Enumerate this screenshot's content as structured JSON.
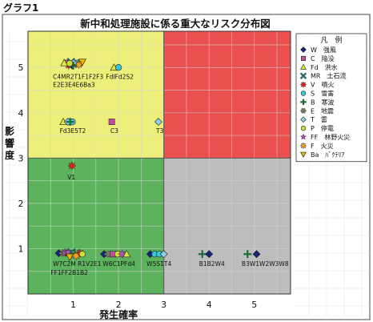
{
  "page_label": "グラフ1",
  "chart_data": {
    "type": "scatter",
    "title": "新中和処理施設に係る重大なリスク分布図",
    "xlabel": "発生確率",
    "ylabel": "影響度",
    "xlim": [
      0,
      5.8
    ],
    "ylim": [
      0,
      5.8
    ],
    "x_ticks": [
      "1",
      "2",
      "3",
      "4",
      "5"
    ],
    "y_ticks": [
      "1",
      "2",
      "3",
      "4",
      "5"
    ],
    "grid": true,
    "legend_position": "right",
    "zones": [
      {
        "x": [
          0,
          3
        ],
        "y": [
          3,
          5.8
        ],
        "color": "#ecf07a"
      },
      {
        "x": [
          3,
          5.8
        ],
        "y": [
          3,
          5.8
        ],
        "color": "#e9504f"
      },
      {
        "x": [
          0,
          3
        ],
        "y": [
          0,
          3
        ],
        "color": "#5db35d"
      },
      {
        "x": [
          3,
          5.8
        ],
        "y": [
          0,
          3
        ],
        "color": "#bdbdbd"
      }
    ],
    "legend_title": "凡　例",
    "series": [
      {
        "name": "W　強風",
        "color": "#1a237e",
        "marker": "diamond"
      },
      {
        "name": "C　陥没",
        "color": "#c04d9e",
        "marker": "square"
      },
      {
        "name": "Fd　洪水",
        "color": "#dde83e",
        "marker": "triangle"
      },
      {
        "name": "MR　土石流",
        "color": "#2b6b6b",
        "marker": "cross"
      },
      {
        "name": "V　噴火",
        "color": "#e52020",
        "marker": "burst"
      },
      {
        "name": "S　雪害",
        "color": "#3ec4d4",
        "marker": "circle"
      },
      {
        "name": "B　寒波",
        "color": "#1f6b3a",
        "marker": "plus"
      },
      {
        "name": "E　地震",
        "color": "#6f7d5c",
        "marker": "gear"
      },
      {
        "name": "T　雷",
        "color": "#8fd0e8",
        "marker": "diamond"
      },
      {
        "name": "P　停電",
        "color": "#c8e03a",
        "marker": "circle"
      },
      {
        "name": "FF　林野火災",
        "color": "#b050b0",
        "marker": "star"
      },
      {
        "name": "F　火災",
        "color": "#f2a020",
        "marker": "burst"
      },
      {
        "name": "Ba　ﾊﾞｸﾃﾘｱ",
        "color": "#e8b800",
        "marker": "triangle-down"
      }
    ],
    "points": [
      {
        "x": 0.85,
        "y": 5.1,
        "marker": "square",
        "color": "#c04d9e"
      },
      {
        "x": 0.95,
        "y": 5.12,
        "marker": "cross",
        "color": "#2b6b6b"
      },
      {
        "x": 1.05,
        "y": 5.08,
        "marker": "burst",
        "color": "#b050b0"
      },
      {
        "x": 1.1,
        "y": 5.1,
        "marker": "circle",
        "color": "#3ec4d4"
      },
      {
        "x": 0.9,
        "y": 5.05,
        "marker": "burst",
        "color": "#e52020"
      },
      {
        "x": 1.0,
        "y": 5.1,
        "marker": "diamond",
        "color": "#8fd0e8"
      },
      {
        "x": 1.15,
        "y": 5.1,
        "marker": "gear",
        "color": "#6f7d5c"
      },
      {
        "x": 0.8,
        "y": 5.1,
        "marker": "triangle",
        "color": "#dde83e"
      },
      {
        "x": 1.2,
        "y": 5.12,
        "marker": "triangle-down",
        "color": "#e8b800"
      },
      {
        "x": 0.97,
        "y": 5.05,
        "marker": "diamond",
        "color": "#1a237e"
      },
      {
        "x": 1.12,
        "y": 5.06,
        "marker": "burst",
        "color": "#f2a020"
      },
      {
        "x": 1.0,
        "y": 5.04,
        "marker": "plus",
        "color": "#1f6b3a"
      },
      {
        "x": 0.92,
        "y": 5.09,
        "marker": "circle",
        "color": "#c8e03a"
      },
      {
        "x": 1.9,
        "y": 5.0,
        "marker": "triangle",
        "color": "#dde83e"
      },
      {
        "x": 2.0,
        "y": 5.0,
        "marker": "circle",
        "color": "#3ec4d4"
      },
      {
        "x": 0.78,
        "y": 3.8,
        "marker": "triangle",
        "color": "#dde83e"
      },
      {
        "x": 0.88,
        "y": 3.8,
        "marker": "diamond",
        "color": "#8fd0e8"
      },
      {
        "x": 0.98,
        "y": 3.8,
        "marker": "circle",
        "color": "#3ec4d4"
      },
      {
        "x": 0.93,
        "y": 3.8,
        "marker": "plus",
        "color": "#1f6b3a"
      },
      {
        "x": 1.85,
        "y": 3.8,
        "marker": "square",
        "color": "#c04d9e"
      },
      {
        "x": 2.88,
        "y": 3.8,
        "marker": "diamond",
        "color": "#8fd0e8"
      },
      {
        "x": 0.97,
        "y": 2.83,
        "marker": "burst",
        "color": "#e52020"
      },
      {
        "x": 0.68,
        "y": 0.9,
        "marker": "diamond",
        "color": "#1a237e"
      },
      {
        "x": 0.78,
        "y": 0.9,
        "marker": "gear",
        "color": "#6f7d5c"
      },
      {
        "x": 0.82,
        "y": 0.92,
        "marker": "burst",
        "color": "#b050b0"
      },
      {
        "x": 0.87,
        "y": 0.92,
        "marker": "star",
        "color": "#b050b0"
      },
      {
        "x": 0.9,
        "y": 0.9,
        "marker": "square",
        "color": "#c04d9e"
      },
      {
        "x": 0.96,
        "y": 0.92,
        "marker": "cross",
        "color": "#2b6b6b"
      },
      {
        "x": 1.0,
        "y": 0.88,
        "marker": "diamond",
        "color": "#8fd0e8"
      },
      {
        "x": 1.03,
        "y": 0.9,
        "marker": "plus",
        "color": "#1f6b3a"
      },
      {
        "x": 1.12,
        "y": 0.9,
        "marker": "triangle",
        "color": "#dde83e"
      },
      {
        "x": 1.15,
        "y": 0.9,
        "marker": "burst",
        "color": "#e52020"
      },
      {
        "x": 1.2,
        "y": 0.88,
        "marker": "circle",
        "color": "#c8e03a"
      },
      {
        "x": 0.92,
        "y": 0.82,
        "marker": "triangle-down",
        "color": "#e8b800"
      },
      {
        "x": 1.06,
        "y": 0.84,
        "marker": "burst",
        "color": "#f2a020"
      },
      {
        "x": 1.68,
        "y": 0.88,
        "marker": "diamond",
        "color": "#1a237e"
      },
      {
        "x": 1.78,
        "y": 0.88,
        "marker": "gear",
        "color": "#6f7d5c"
      },
      {
        "x": 1.88,
        "y": 0.88,
        "marker": "square",
        "color": "#c04d9e"
      },
      {
        "x": 1.98,
        "y": 0.88,
        "marker": "circle",
        "color": "#c8e03a"
      },
      {
        "x": 2.08,
        "y": 0.88,
        "marker": "burst",
        "color": "#b050b0"
      },
      {
        "x": 2.18,
        "y": 0.88,
        "marker": "triangle",
        "color": "#dde83e"
      },
      {
        "x": 2.7,
        "y": 0.88,
        "marker": "diamond",
        "color": "#1a237e"
      },
      {
        "x": 2.8,
        "y": 0.88,
        "marker": "circle",
        "color": "#3ec4d4"
      },
      {
        "x": 2.9,
        "y": 0.88,
        "marker": "circle",
        "color": "#3ec4d4"
      },
      {
        "x": 3.0,
        "y": 0.88,
        "marker": "diamond",
        "color": "#8fd0e8"
      },
      {
        "x": 3.85,
        "y": 0.88,
        "marker": "plus",
        "color": "#1f6b3a"
      },
      {
        "x": 4.0,
        "y": 0.88,
        "marker": "diamond",
        "color": "#1a237e"
      },
      {
        "x": 4.85,
        "y": 0.88,
        "marker": "plus",
        "color": "#1f6b3a"
      },
      {
        "x": 5.05,
        "y": 0.88,
        "marker": "diamond",
        "color": "#1a237e"
      }
    ],
    "annotations": [
      {
        "text": "C4MR2T1F1F2F3",
        "x": 0.55,
        "y": 4.75
      },
      {
        "text": "E2E3E4E6Ba3",
        "x": 0.55,
        "y": 4.57
      },
      {
        "text": "FdIFd2S2",
        "x": 1.72,
        "y": 4.75
      },
      {
        "text": "Fd3E5T2",
        "x": 0.7,
        "y": 3.55
      },
      {
        "text": "C3",
        "x": 1.82,
        "y": 3.55
      },
      {
        "text": "T3",
        "x": 2.83,
        "y": 3.55
      },
      {
        "text": "V1",
        "x": 0.87,
        "y": 2.53
      },
      {
        "text": "W7C2M R1V2E1",
        "x": 0.55,
        "y": 0.62
      },
      {
        "text": "FF1FF2B1B2",
        "x": 0.5,
        "y": 0.42
      },
      {
        "text": "W6C1PFd4",
        "x": 1.65,
        "y": 0.62
      },
      {
        "text": "W5S1T4",
        "x": 2.62,
        "y": 0.62
      },
      {
        "text": "B1B2W4",
        "x": 3.78,
        "y": 0.62
      },
      {
        "text": "B3W1W2W3W8",
        "x": 4.72,
        "y": 0.62
      }
    ]
  }
}
